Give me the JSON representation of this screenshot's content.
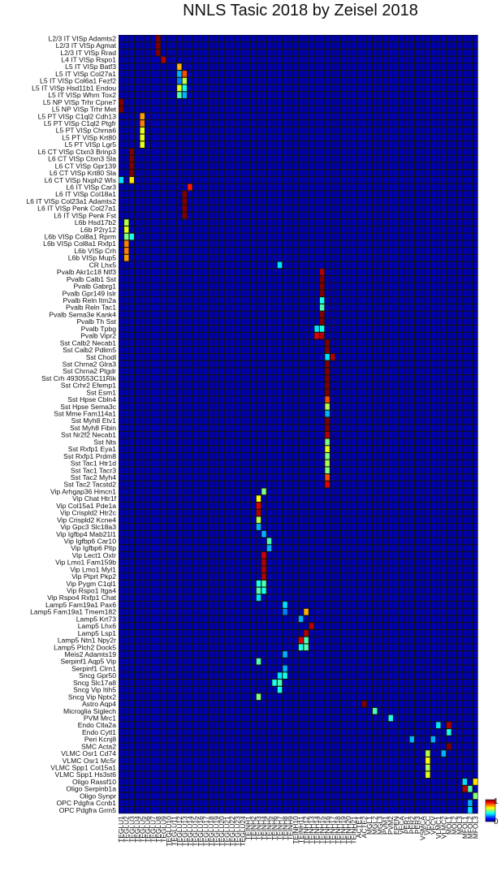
{
  "chart_data": {
    "type": "heatmap",
    "title": "NNLS Tasic 2018 by Zeisel 2018",
    "rows": [
      "L2/3 IT VISp Adamts2",
      "L2/3 IT VISp Agmat",
      "L2/3 IT VISp Rrad",
      "L4 IT VISp Rspo1",
      "L5 IT VISp Batf3",
      "L5 IT VISp Col27a1",
      "L5 IT VISp Col6a1 Fezf2",
      "L5 IT VISp Hsd11b1 Endou",
      "L5 IT VISp Whrn Tox2",
      "L5 NP VISp Trhr Cpne7",
      "L5 NP VISp Trhr Met",
      "L5 PT VISp C1ql2 Cdh13",
      "L5 PT VISp C1ql2 Ptgfr",
      "L5 PT VISp Chrna6",
      "L5 PT VISp Krt80",
      "L5 PT VISp Lgr5",
      "L6 CT VISp Ctxn3 Brinp3",
      "L6 CT VISp Ctxn3 Sla",
      "L6 CT VISp Gpr139",
      "L6 CT VISp Krt80 Sla",
      "L6 CT VISp Nxph2 Wls",
      "L6 IT VISp Car3",
      "L6 IT VISp Col18a1",
      "L6 IT VISp Col23a1 Adamts2",
      "L6 IT VISp Penk Col27a1",
      "L6 IT VISp Penk Fst",
      "L6b Hsd17b2",
      "L6b P2ry12",
      "L6b VISp Col8a1 Rprm",
      "L6b VISp Col8a1 Rxfp1",
      "L6b VISp Crh",
      "L6b VISp Mup5",
      "CR Lhx5",
      "Pvalb Akr1c18 Ntf3",
      "Pvalb Calb1 Sst",
      "Pvalb Gabrg1",
      "Pvalb Gpr149 Islr",
      "Pvalb Reln Itm2a",
      "Pvalb Reln Tac1",
      "Pvalb Sema3e Kank4",
      "Pvalb Th Sst",
      "Pvalb Tpbg",
      "Pvalb Vipr2",
      "Sst Calb2 Necab1",
      "Sst Calb2 Pdlim5",
      "Sst Chodl",
      "Sst Chrna2 Glra3",
      "Sst Chrna2 Ptgdr",
      "Sst Crh 4930553C11Rik",
      "Sst Crhr2 Efemp1",
      "Sst Esm1",
      "Sst Hpse Cbln4",
      "Sst Hpse Sema3c",
      "Sst Mme Fam114a1",
      "Sst Myh8 Etv1",
      "Sst Myh8 Fibin",
      "Sst Nr2f2 Necab1",
      "Sst Nts",
      "Sst Rxfp1 Eya1",
      "Sst Rxfp1 Prdm8",
      "Sst Tac1 Htr1d",
      "Sst Tac1 Tacr3",
      "Sst Tac2 Myh4",
      "Sst Tac2 Tacstd2",
      "Vip Arhgap36 Hmcn1",
      "Vip Chat Htr1f",
      "Vip Col15a1 Pde1a",
      "Vip Crispld2 Htr2c",
      "Vip Crispld2 Kcne4",
      "Vip Gpc3 Slc18a3",
      "Vip Igfbp4 Mab21l1",
      "Vip Igfbp6 Car10",
      "Vip Igfbp6 Pltp",
      "Vip Lect1 Oxtr",
      "Vip Lmo1 Fam159b",
      "Vip Lmo1 Myl1",
      "Vip Ptprt Pkp2",
      "Vip Pygm C1ql1",
      "Vip Rspo1 Itga4",
      "Vip Rspo4 Rxfp1 Chat",
      "Lamp5 Fam19a1 Pax6",
      "Lamp5 Fam19a1 Tmem182",
      "Lamp5 Krt73",
      "Lamp5 Lhx6",
      "Lamp5 Lsp1",
      "Lamp5 Ntn1 Npy2r",
      "Lamp5 Plch2 Dock5",
      "Meis2 Adamts19",
      "Serpinf1 Aqp5 Vip",
      "Serpinf1 Clrn1",
      "Sncg Gpr50",
      "Sncg Slc17a8",
      "Sncg Vip Itih5",
      "Sncg Vip Nptx2",
      "Astro Aqp4",
      "Microglia Siglech",
      "PVM Mrc1",
      "Endo Ctla2a",
      "Endo Cytl1",
      "Peri Kcnj8",
      "SMC Acta2",
      "VLMC Osr1 Cd74",
      "VLMC Osr1 Mc5r",
      "VLMC Spp1 Col15a1",
      "VLMC Spp1 Hs3st6",
      "Oligo Rassf10",
      "Oligo Serpinb1a",
      "Oligo Synpr",
      "OPC Pdgfra Ccnb1",
      "OPC Pdgfra Grm5"
    ],
    "columns": [
      "TEGLU1",
      "TEGLU2",
      "TEGLU3",
      "TEGLU4",
      "TEGLU5",
      "TEGLU6",
      "TEGLU7",
      "TEGLU8",
      "TEGLU9",
      "TEGLU10",
      "TEGLU11",
      "TEGLU12",
      "TEGLU13",
      "TEGLU14",
      "TEGLU15",
      "TEGLU16",
      "TEGLU17",
      "TEGLU18",
      "TEGLU19",
      "TEGLU20",
      "TEGLU21",
      "TEGLU22",
      "TEGLU23",
      "TEGLU24",
      "TEINH1",
      "TEINH2",
      "TEINH3",
      "TEINH4",
      "TEINH5",
      "TEINH6",
      "TEINH7",
      "TEINH8",
      "TEINH9",
      "TEINH10",
      "TEINH11",
      "TEINH12",
      "TEINH13",
      "TEINH14",
      "TEINH15",
      "TEINH16",
      "TEINH17",
      "TEINH18",
      "TEINH19",
      "TEINH20",
      "TEINH21",
      "ACTE1",
      "ACTE2",
      "MGL1",
      "MGL2",
      "MGL3",
      "PVM1",
      "PVM2",
      "EPEN",
      "VECA",
      "PER1",
      "PER2",
      "PER3",
      "VSMCA",
      "VECC",
      "VECV",
      "VLMC1",
      "VLMC2",
      "MOL1",
      "MOL2",
      "MOL3",
      "MFOL1",
      "MFOL2",
      "MFOL3"
    ],
    "cells": [
      [
        0,
        7,
        1.0
      ],
      [
        1,
        7,
        1.0
      ],
      [
        2,
        7,
        1.0
      ],
      [
        3,
        8,
        0.95
      ],
      [
        4,
        11,
        0.7
      ],
      [
        5,
        12,
        0.8
      ],
      [
        5,
        11,
        0.3
      ],
      [
        6,
        12,
        0.55
      ],
      [
        6,
        11,
        0.25
      ],
      [
        7,
        11,
        0.6
      ],
      [
        7,
        12,
        0.4
      ],
      [
        8,
        11,
        0.45
      ],
      [
        8,
        12,
        0.3
      ],
      [
        9,
        0,
        1.0
      ],
      [
        10,
        0,
        1.0
      ],
      [
        11,
        4,
        0.72
      ],
      [
        12,
        4,
        0.75
      ],
      [
        13,
        4,
        0.6
      ],
      [
        14,
        4,
        0.6
      ],
      [
        15,
        4,
        0.6
      ],
      [
        16,
        2,
        1.0
      ],
      [
        17,
        2,
        1.0
      ],
      [
        18,
        2,
        1.0
      ],
      [
        19,
        2,
        1.0
      ],
      [
        20,
        2,
        0.65
      ],
      [
        20,
        0,
        0.35
      ],
      [
        21,
        13,
        0.85
      ],
      [
        22,
        12,
        1.0
      ],
      [
        23,
        12,
        1.0
      ],
      [
        24,
        12,
        1.0
      ],
      [
        25,
        12,
        1.0
      ],
      [
        26,
        1,
        0.55
      ],
      [
        27,
        1,
        0.6
      ],
      [
        28,
        1,
        0.5
      ],
      [
        28,
        2,
        0.4
      ],
      [
        29,
        1,
        0.75
      ],
      [
        30,
        1,
        0.75
      ],
      [
        31,
        1,
        0.72
      ],
      [
        32,
        30,
        0.35
      ],
      [
        33,
        38,
        0.95
      ],
      [
        34,
        38,
        1.0
      ],
      [
        35,
        38,
        1.0
      ],
      [
        36,
        38,
        1.0
      ],
      [
        37,
        38,
        0.4
      ],
      [
        38,
        38,
        0.45
      ],
      [
        39,
        38,
        1.0
      ],
      [
        40,
        38,
        1.0
      ],
      [
        41,
        38,
        0.4
      ],
      [
        41,
        37,
        0.35
      ],
      [
        42,
        38,
        0.95
      ],
      [
        42,
        37,
        0.9
      ],
      [
        43,
        39,
        1.0
      ],
      [
        44,
        39,
        1.0
      ],
      [
        45,
        40,
        0.95
      ],
      [
        45,
        39,
        0.35
      ],
      [
        46,
        39,
        1.0
      ],
      [
        47,
        39,
        1.0
      ],
      [
        48,
        39,
        1.0
      ],
      [
        49,
        39,
        1.0
      ],
      [
        50,
        39,
        1.0
      ],
      [
        51,
        39,
        0.8
      ],
      [
        52,
        39,
        0.55
      ],
      [
        53,
        39,
        0.3
      ],
      [
        54,
        39,
        1.0
      ],
      [
        55,
        39,
        1.0
      ],
      [
        56,
        39,
        0.95
      ],
      [
        57,
        39,
        0.5
      ],
      [
        58,
        39,
        0.6
      ],
      [
        59,
        39,
        0.5
      ],
      [
        60,
        39,
        0.55
      ],
      [
        61,
        39,
        0.5
      ],
      [
        62,
        39,
        0.8
      ],
      [
        63,
        39,
        0.9
      ],
      [
        64,
        27,
        0.5
      ],
      [
        65,
        26,
        0.62
      ],
      [
        66,
        26,
        0.9
      ],
      [
        67,
        26,
        0.95
      ],
      [
        68,
        26,
        0.55
      ],
      [
        69,
        26,
        0.3
      ],
      [
        70,
        27,
        0.3
      ],
      [
        71,
        28,
        0.45
      ],
      [
        72,
        28,
        0.3
      ],
      [
        73,
        27,
        0.92
      ],
      [
        74,
        27,
        0.95
      ],
      [
        75,
        27,
        0.95
      ],
      [
        76,
        27,
        0.95
      ],
      [
        77,
        26,
        0.4
      ],
      [
        77,
        27,
        0.45
      ],
      [
        78,
        26,
        0.45
      ],
      [
        78,
        27,
        0.4
      ],
      [
        79,
        26,
        0.35
      ],
      [
        80,
        31,
        0.35
      ],
      [
        81,
        35,
        0.7
      ],
      [
        81,
        31,
        0.25
      ],
      [
        82,
        34,
        0.3
      ],
      [
        83,
        36,
        0.95
      ],
      [
        84,
        35,
        0.95
      ],
      [
        85,
        34,
        0.9
      ],
      [
        85,
        35,
        0.45
      ],
      [
        86,
        34,
        0.4
      ],
      [
        86,
        35,
        0.45
      ],
      [
        87,
        31,
        0.3
      ],
      [
        88,
        26,
        0.45
      ],
      [
        89,
        31,
        0.3
      ],
      [
        90,
        30,
        0.35
      ],
      [
        90,
        31,
        0.4
      ],
      [
        91,
        29,
        0.4
      ],
      [
        91,
        30,
        0.45
      ],
      [
        92,
        30,
        0.4
      ],
      [
        93,
        26,
        0.5
      ],
      [
        94,
        46,
        1.0
      ],
      [
        95,
        48,
        0.45
      ],
      [
        96,
        51,
        0.4
      ],
      [
        97,
        62,
        0.95
      ],
      [
        97,
        60,
        0.35
      ],
      [
        98,
        62,
        0.4
      ],
      [
        99,
        55,
        0.3
      ],
      [
        99,
        59,
        0.3
      ],
      [
        100,
        62,
        1.0
      ],
      [
        101,
        58,
        0.55
      ],
      [
        101,
        61,
        0.3
      ],
      [
        102,
        58,
        0.62
      ],
      [
        103,
        58,
        0.55
      ],
      [
        104,
        58,
        0.6
      ],
      [
        105,
        67,
        0.65
      ],
      [
        105,
        65,
        0.35
      ],
      [
        106,
        65,
        0.95
      ],
      [
        106,
        66,
        0.45
      ],
      [
        107,
        67,
        0.5
      ],
      [
        108,
        66,
        0.3
      ],
      [
        109,
        66,
        0.35
      ]
    ],
    "background_value": 0.05,
    "colorbar": {
      "colormap": "jet",
      "range": [
        0,
        1
      ],
      "ticks": [
        "0",
        "1"
      ]
    },
    "xlabel": "",
    "ylabel": ""
  }
}
